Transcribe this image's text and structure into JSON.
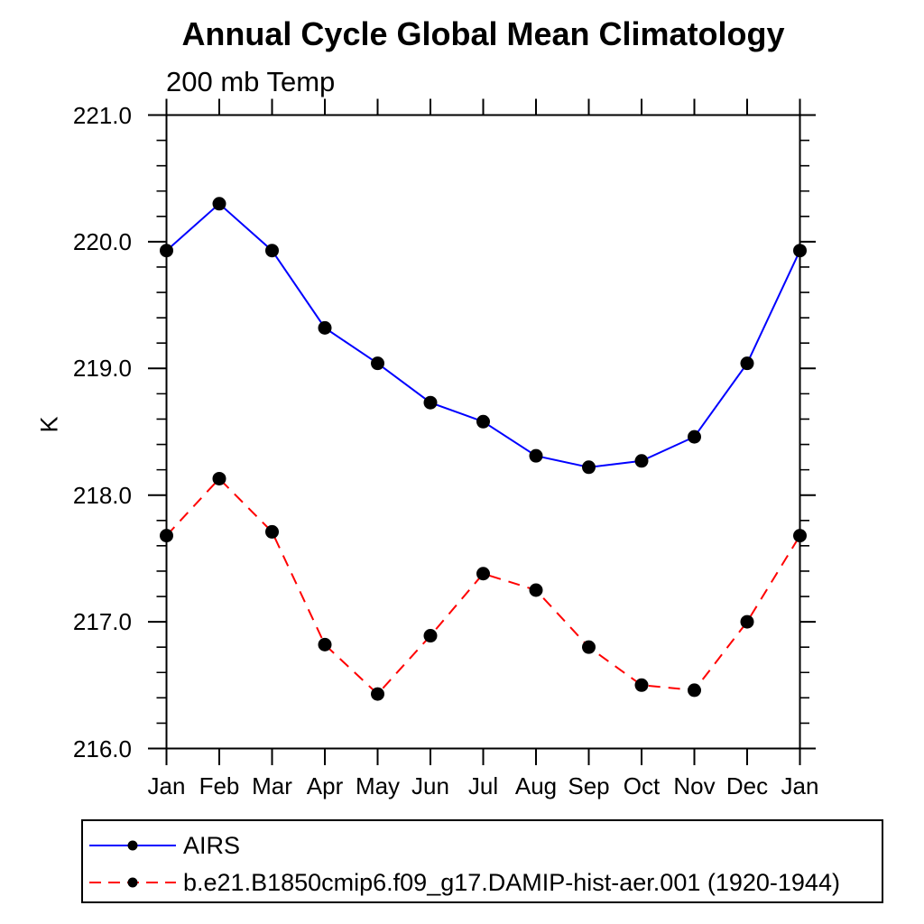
{
  "page": {
    "background": "#ffffff"
  },
  "chart_data": {
    "type": "line",
    "title": "Annual Cycle Global Mean Climatology",
    "subtitle": "200 mb Temp",
    "ylabel": "K",
    "xlabel": "",
    "categories": [
      "Jan",
      "Feb",
      "Mar",
      "Apr",
      "May",
      "Jun",
      "Jul",
      "Aug",
      "Sep",
      "Oct",
      "Nov",
      "Dec",
      "Jan"
    ],
    "ylim": [
      216.0,
      221.0
    ],
    "ytick_major_step": 1.0,
    "ytick_minor_step": 0.2,
    "ytick_labels": [
      "216.0",
      "217.0",
      "218.0",
      "219.0",
      "220.0",
      "221.0"
    ],
    "grid": false,
    "axis_color": "#000000",
    "marker_color": "#000000",
    "legend_position": "bottom-left boxed",
    "series": [
      {
        "name": "AIRS",
        "color": "#0000ff",
        "line_style": "solid",
        "marker": "filled-circle",
        "values": [
          219.93,
          220.3,
          219.93,
          219.32,
          219.04,
          218.73,
          218.58,
          218.31,
          218.22,
          218.27,
          218.46,
          219.04,
          219.93
        ]
      },
      {
        "name": "b.e21.B1850cmip6.f09_g17.DAMIP-hist-aer.001 (1920-1944)",
        "color": "#ff0000",
        "line_style": "dashed",
        "marker": "filled-circle",
        "values": [
          217.68,
          218.13,
          217.71,
          216.82,
          216.43,
          216.89,
          217.38,
          217.25,
          216.8,
          216.5,
          216.46,
          217.0,
          217.68
        ]
      }
    ]
  }
}
